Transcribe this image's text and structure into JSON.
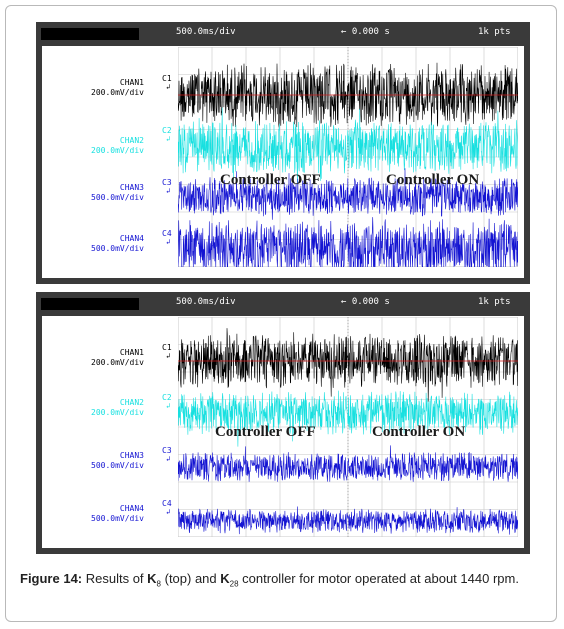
{
  "colors": {
    "chan1": "#000000",
    "chan2": "#18e0e0",
    "chan3": "#1414d2",
    "chan4": "#1414d2",
    "ref": "#d01818",
    "grid": "#c8c8c8"
  },
  "scopes": [
    {
      "header": {
        "timebase": "500.0ms/div",
        "offset": "← 0.000 s",
        "points": "1k pts"
      },
      "channels": [
        {
          "name": "CHAN1",
          "scale": "200.0mV/div",
          "tag": "C1",
          "glyph": "↲"
        },
        {
          "name": "CHAN2",
          "scale": "200.0mV/div",
          "tag": "C2",
          "glyph": "↲"
        },
        {
          "name": "CHAN3",
          "scale": "500.0mV/div",
          "tag": "C3",
          "glyph": "↲"
        },
        {
          "name": "CHAN4",
          "scale": "500.0mV/div",
          "tag": "C4",
          "glyph": "↲"
        }
      ],
      "annotations": {
        "off": "Controller OFF",
        "on": "Controller ON"
      }
    },
    {
      "header": {
        "timebase": "500.0ms/div",
        "offset": "← 0.000 s",
        "points": "1k pts"
      },
      "channels": [
        {
          "name": "CHAN1",
          "scale": "200.0mV/div",
          "tag": "C1",
          "glyph": "↲"
        },
        {
          "name": "CHAN2",
          "scale": "200.0mV/div",
          "tag": "C2",
          "glyph": "↲"
        },
        {
          "name": "CHAN3",
          "scale": "500.0mV/div",
          "tag": "C3",
          "glyph": "↲"
        },
        {
          "name": "CHAN4",
          "scale": "500.0mV/div",
          "tag": "C4",
          "glyph": "↲"
        }
      ],
      "annotations": {
        "off": "Controller OFF",
        "on": "Controller ON"
      }
    }
  ],
  "caption": {
    "label": "Figure 14:",
    "t1": " Results of ",
    "k1": "K",
    "k1sub": "8",
    "t2": " (top) and ",
    "k2": "K",
    "k2sub": "28",
    "t3": " controller for motor operated at about 1440 rpm."
  },
  "chart_data": [
    {
      "type": "line",
      "x_range_s": [
        -2.5,
        2.5
      ],
      "grid": true,
      "series": [
        {
          "name": "CHAN1",
          "ylabel": "200.0mV/div"
        },
        {
          "name": "CHAN2",
          "ylabel": "200.0mV/div"
        },
        {
          "name": "CHAN3",
          "ylabel": "500.0mV/div"
        },
        {
          "name": "CHAN4",
          "ylabel": "500.0mV/div"
        }
      ]
    },
    {
      "type": "line",
      "x_range_s": [
        -2.5,
        2.5
      ],
      "grid": true,
      "series": [
        {
          "name": "CHAN1",
          "ylabel": "200.0mV/div"
        },
        {
          "name": "CHAN2",
          "ylabel": "200.0mV/div"
        },
        {
          "name": "CHAN3",
          "ylabel": "500.0mV/div"
        },
        {
          "name": "CHAN4",
          "ylabel": "500.0mV/div"
        }
      ]
    }
  ]
}
